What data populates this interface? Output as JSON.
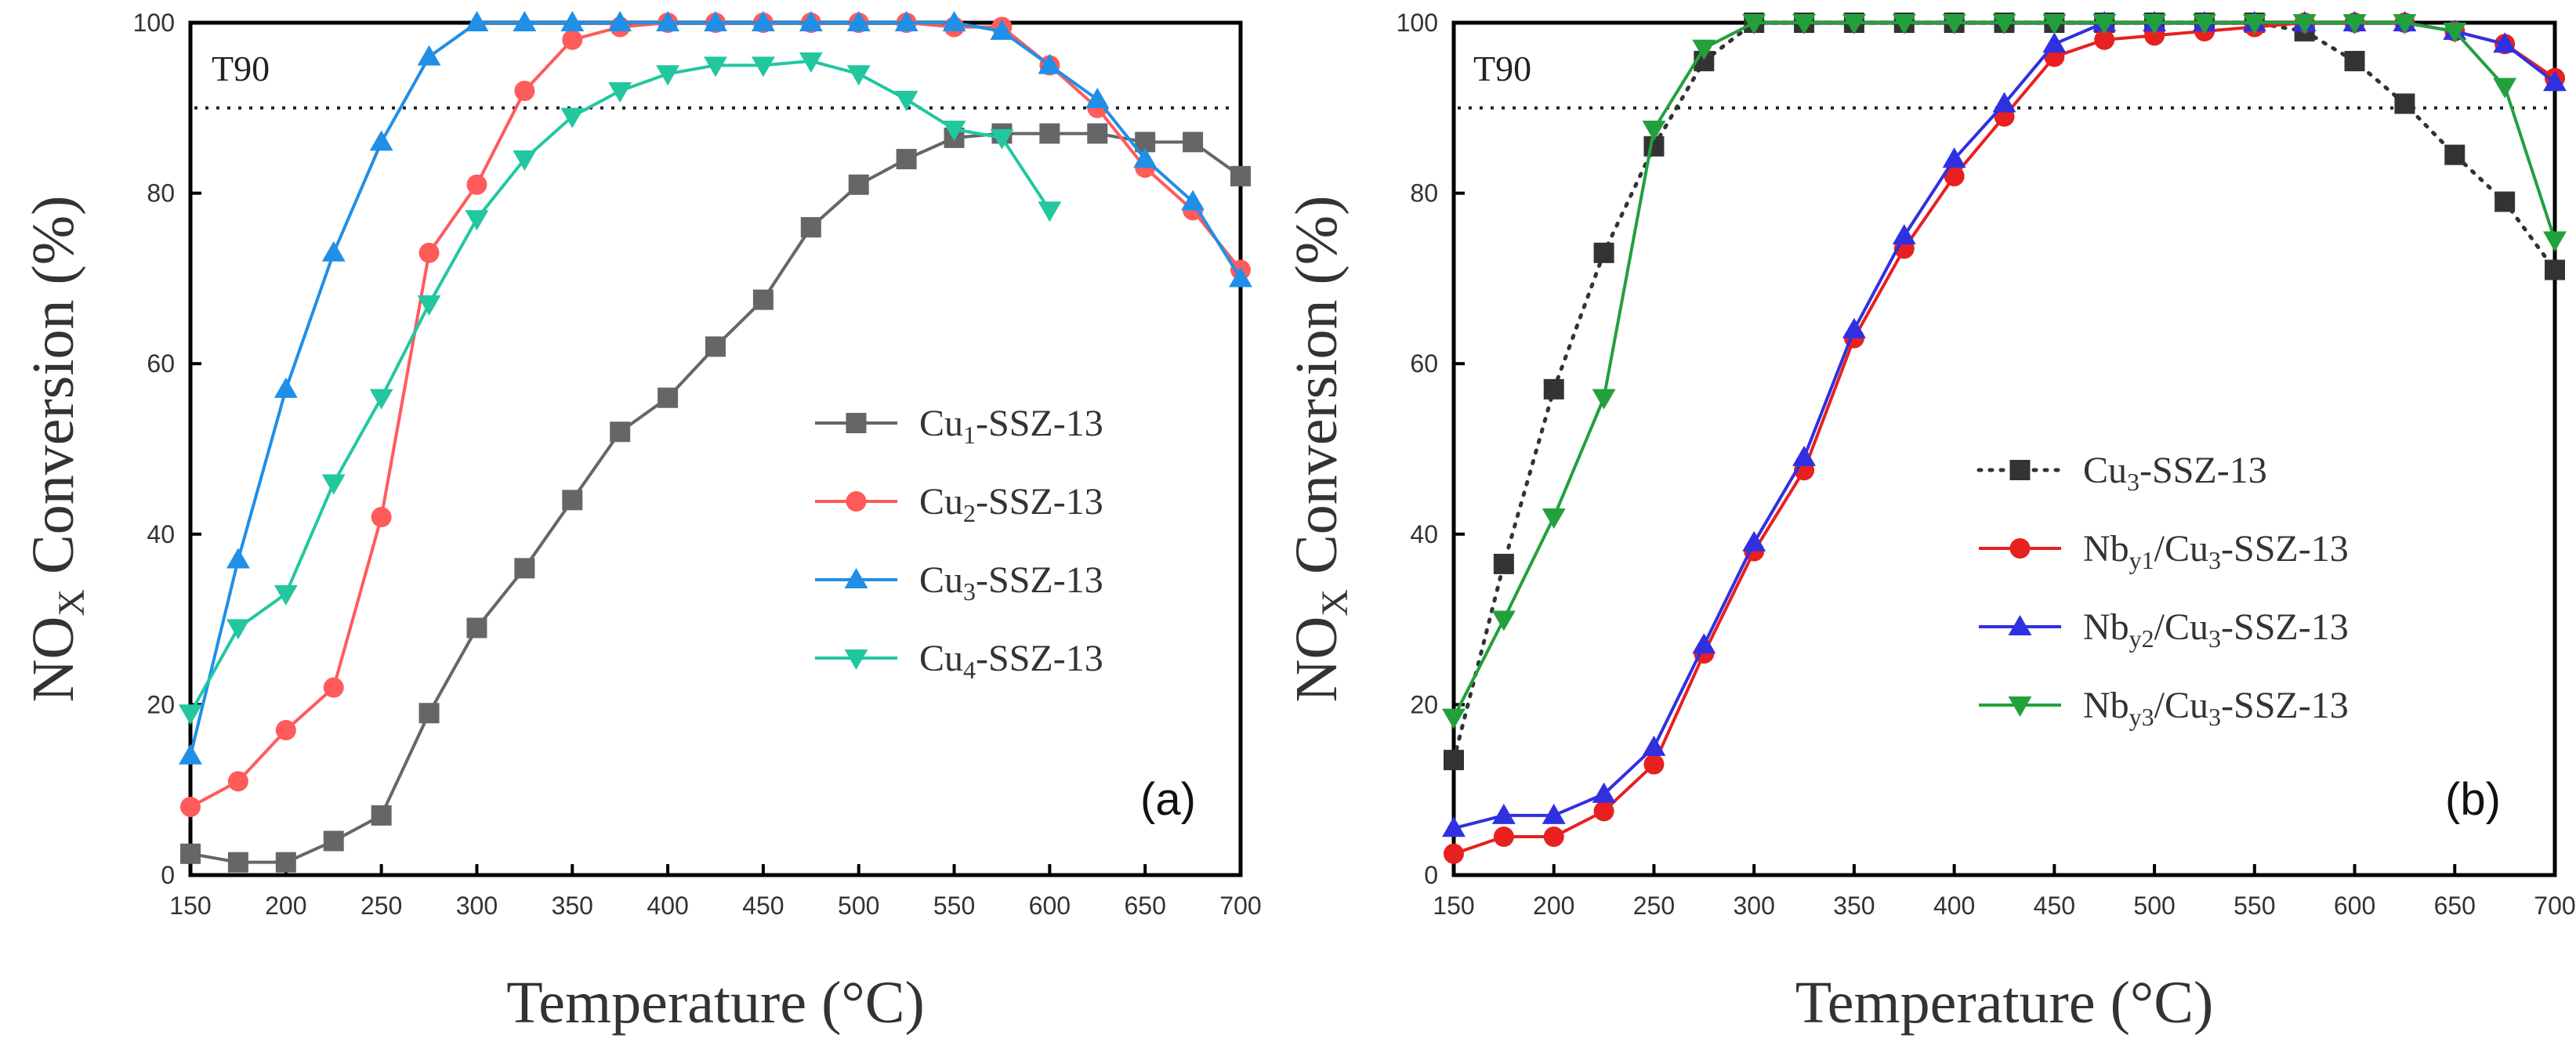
{
  "chart_data": [
    {
      "type": "line",
      "panel_label": "(a)",
      "xlabel": "Temperature (°C)",
      "ylabel_main": "NO",
      "ylabel_sub": "X",
      "ylabel_rest": " Conversion (%)",
      "xlim": [
        150,
        700
      ],
      "ylim": [
        0,
        100
      ],
      "xticks": [
        150,
        200,
        250,
        300,
        350,
        400,
        450,
        500,
        550,
        600,
        650,
        700
      ],
      "yticks": [
        0,
        20,
        40,
        60,
        80,
        100
      ],
      "reference_line": {
        "label": "T90",
        "y": 90
      },
      "legend_position": "center-right",
      "series": [
        {
          "name": "Cu1-SSZ-13",
          "name_main": "Cu",
          "name_sub": "1",
          "name_rest": "-SSZ-13",
          "color": "#666666",
          "marker": "square",
          "line": "solid",
          "x": [
            150,
            175,
            200,
            225,
            250,
            275,
            300,
            325,
            350,
            375,
            400,
            425,
            450,
            475,
            500,
            525,
            550,
            575,
            600,
            625,
            650,
            675,
            700
          ],
          "y": [
            2.5,
            1.5,
            1.5,
            4,
            7,
            19,
            29,
            36,
            44,
            52,
            56,
            62,
            67.5,
            76,
            81,
            84,
            86.5,
            87,
            87,
            87,
            86,
            86,
            82
          ]
        },
        {
          "name": "Cu2-SSZ-13",
          "name_main": "Cu",
          "name_sub": "2",
          "name_rest": "-SSZ-13",
          "color": "#ff5b5b",
          "marker": "circle",
          "line": "solid",
          "x": [
            150,
            175,
            200,
            225,
            250,
            275,
            300,
            325,
            350,
            375,
            400,
            425,
            450,
            475,
            500,
            525,
            550,
            575,
            600,
            625,
            650,
            675,
            700
          ],
          "y": [
            8,
            11,
            17,
            22,
            42,
            73,
            81,
            92,
            98,
            99.5,
            100,
            100,
            100,
            100,
            100,
            100,
            99.5,
            99.5,
            95,
            90,
            83,
            78,
            71
          ]
        },
        {
          "name": "Cu3-SSZ-13",
          "name_main": "Cu",
          "name_sub": "3",
          "name_rest": "-SSZ-13",
          "color": "#1f8fe8",
          "marker": "triangle-up",
          "line": "solid",
          "x": [
            150,
            175,
            200,
            225,
            250,
            275,
            300,
            325,
            350,
            375,
            400,
            425,
            450,
            475,
            500,
            525,
            550,
            575,
            600,
            625,
            650,
            675,
            700
          ],
          "y": [
            14,
            37,
            57,
            73,
            86,
            96,
            100,
            100,
            100,
            100,
            100,
            100,
            100,
            100,
            100,
            100,
            100,
            99,
            95,
            91,
            84,
            79,
            70
          ]
        },
        {
          "name": "Cu4-SSZ-13",
          "name_main": "Cu",
          "name_sub": "4",
          "name_rest": "-SSZ-13",
          "color": "#22c7a0",
          "marker": "triangle-down",
          "line": "solid",
          "x": [
            150,
            175,
            200,
            225,
            250,
            275,
            300,
            325,
            350,
            375,
            400,
            425,
            450,
            475,
            500,
            525,
            550,
            575,
            600
          ],
          "y": [
            19,
            29,
            33,
            46,
            56,
            67,
            77,
            84,
            89,
            92,
            94,
            95,
            95,
            95.5,
            94,
            91,
            87.5,
            86.5,
            78
          ]
        }
      ]
    },
    {
      "type": "line",
      "panel_label": "(b)",
      "xlabel": "Temperature (°C)",
      "ylabel_main": "NO",
      "ylabel_sub": "X",
      "ylabel_rest": " Conversion (%)",
      "xlim": [
        150,
        700
      ],
      "ylim": [
        0,
        100
      ],
      "xticks": [
        150,
        200,
        250,
        300,
        350,
        400,
        450,
        500,
        550,
        600,
        650,
        700
      ],
      "yticks": [
        0,
        20,
        40,
        60,
        80,
        100
      ],
      "reference_line": {
        "label": "T90",
        "y": 90
      },
      "legend_position": "center-right",
      "series": [
        {
          "name": "Cu3-SSZ-13",
          "name_main": "Cu",
          "name_sub": "3",
          "name_rest": "-SSZ-13",
          "color": "#333333",
          "marker": "square",
          "line": "dotted",
          "x": [
            150,
            175,
            200,
            225,
            250,
            275,
            300,
            325,
            350,
            375,
            400,
            425,
            450,
            475,
            500,
            525,
            550,
            575,
            600,
            625,
            650,
            675,
            700
          ],
          "y": [
            13.5,
            36.5,
            57,
            73,
            85.5,
            95.5,
            100,
            100,
            100,
            100,
            100,
            100,
            100,
            100,
            100,
            100,
            100,
            99,
            95.5,
            90.5,
            84.5,
            79,
            71
          ]
        },
        {
          "name": "Nby1/Cu3-SSZ-13",
          "name_main": "Nb",
          "name_sub": "y1",
          "name_rest": "/Cu",
          "name_sub2": "3",
          "name_rest2": "-SSZ-13",
          "color": "#e82020",
          "marker": "circle",
          "line": "solid",
          "x": [
            150,
            175,
            200,
            225,
            250,
            275,
            300,
            325,
            350,
            375,
            400,
            425,
            450,
            475,
            500,
            525,
            550,
            575,
            600,
            625,
            650,
            675,
            700
          ],
          "y": [
            2.5,
            4.5,
            4.5,
            7.5,
            13,
            26,
            38,
            47.5,
            63,
            73.5,
            82,
            89,
            96,
            98,
            98.5,
            99,
            99.5,
            100,
            100,
            100,
            99,
            97.5,
            93.5
          ]
        },
        {
          "name": "Nby2/Cu3-SSZ-13",
          "name_main": "Nb",
          "name_sub": "y2",
          "name_rest": "/Cu",
          "name_sub2": "3",
          "name_rest2": "-SSZ-13",
          "color": "#3030e0",
          "marker": "triangle-up",
          "line": "solid",
          "x": [
            150,
            175,
            200,
            225,
            250,
            275,
            300,
            325,
            350,
            375,
            400,
            425,
            450,
            475,
            500,
            525,
            550,
            575,
            600,
            625,
            650,
            675,
            700
          ],
          "y": [
            5.5,
            7,
            7,
            9.5,
            15,
            27,
            39,
            49,
            64,
            75,
            84,
            90.5,
            97.5,
            100,
            100,
            100,
            100,
            100,
            100,
            100,
            99,
            97.5,
            93
          ]
        },
        {
          "name": "Nby3/Cu3-SSZ-13",
          "name_main": "Nb",
          "name_sub": "y3",
          "name_rest": "/Cu",
          "name_sub2": "3",
          "name_rest2": "-SSZ-13",
          "color": "#22a03c",
          "marker": "triangle-down",
          "line": "solid",
          "x": [
            150,
            175,
            200,
            225,
            250,
            275,
            300,
            325,
            350,
            375,
            400,
            425,
            450,
            475,
            500,
            525,
            550,
            575,
            600,
            625,
            650,
            675,
            700
          ],
          "y": [
            18.5,
            30,
            42,
            56,
            87.5,
            97,
            100,
            100,
            100,
            100,
            100,
            100,
            100,
            100,
            100,
            100,
            100,
            100,
            100,
            100,
            99,
            92.5,
            74.5
          ]
        }
      ]
    }
  ]
}
